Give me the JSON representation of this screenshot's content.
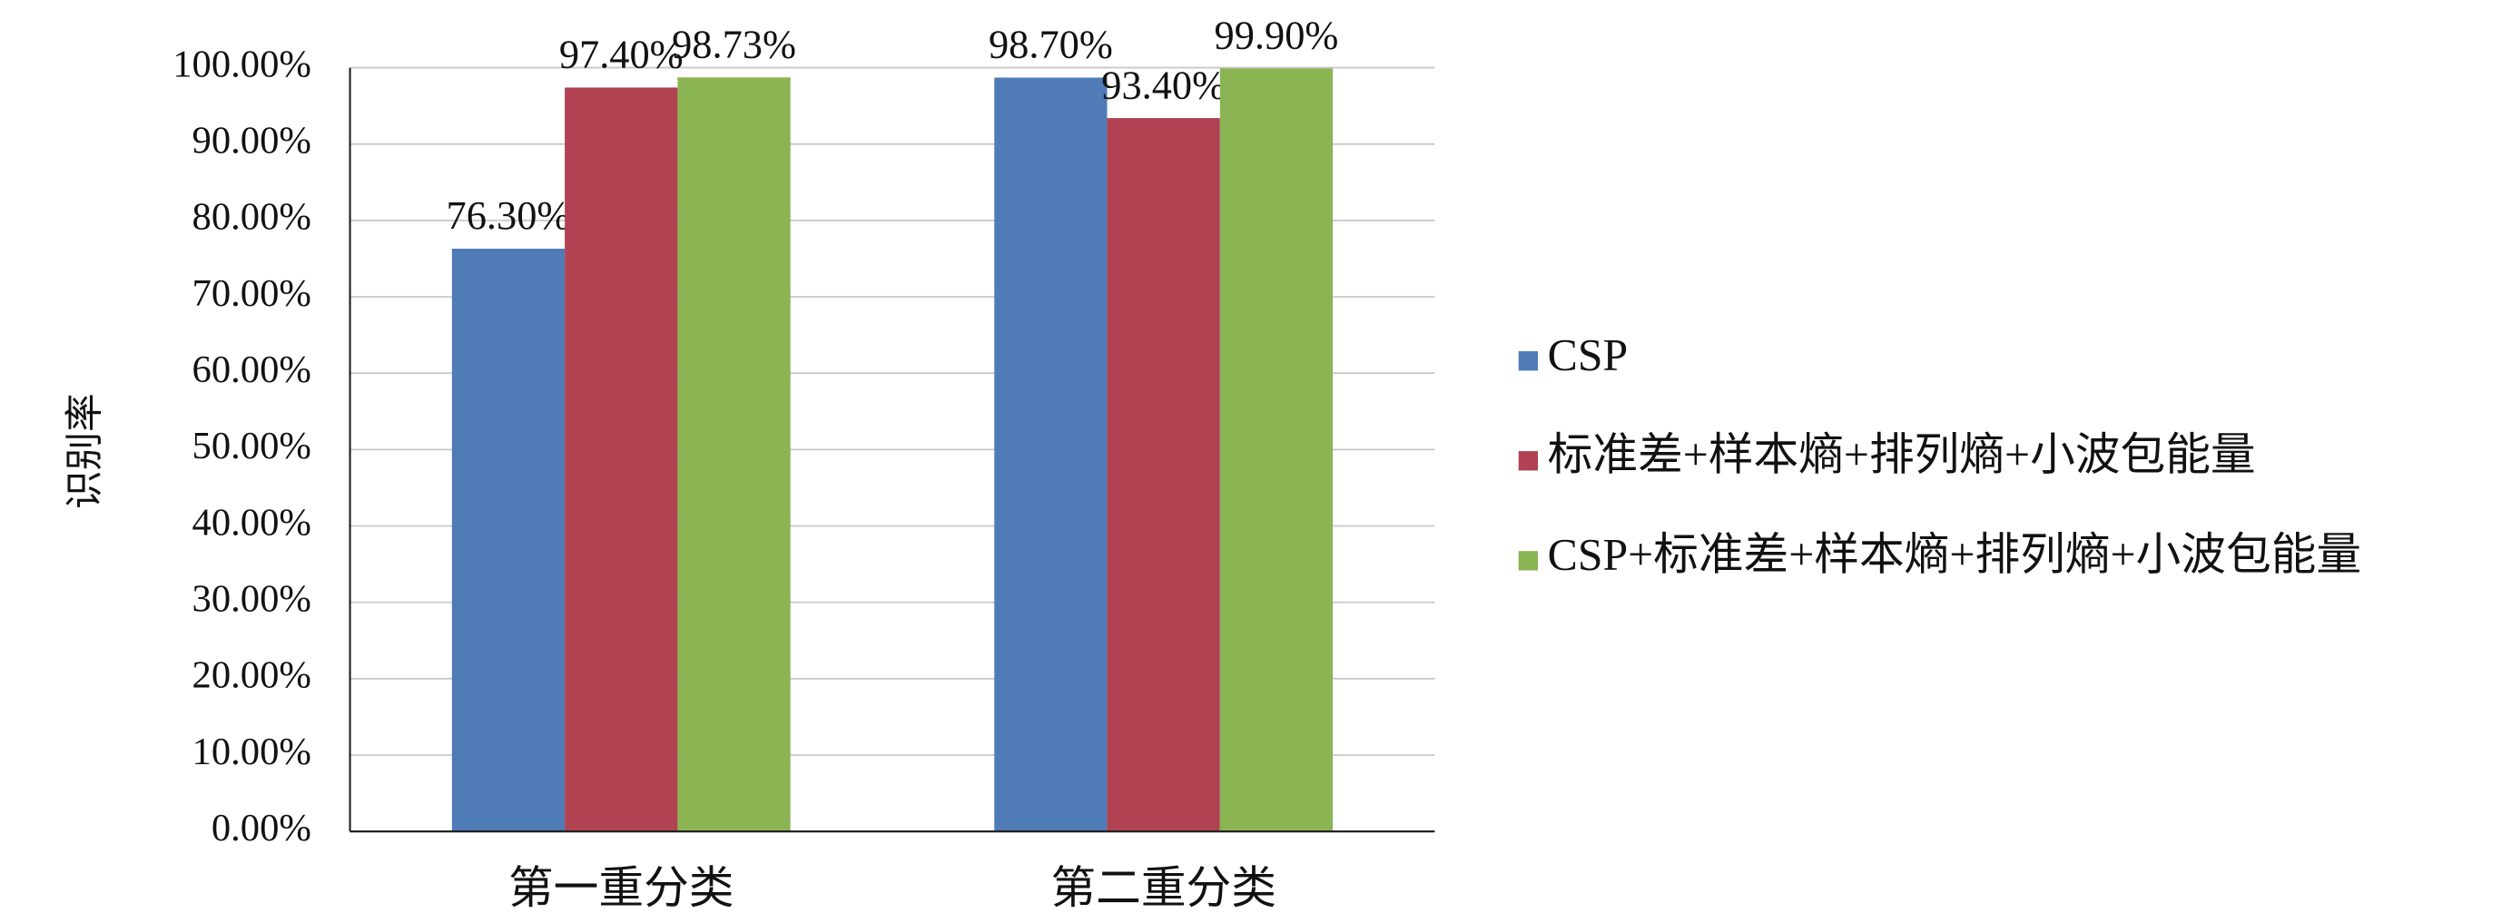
{
  "chart_data": {
    "type": "bar",
    "y_label": "识别率",
    "categories": [
      "第一重分类",
      "第二重分类"
    ],
    "series": [
      {
        "name": "CSP",
        "color": "#4f7bb7",
        "values": [
          76.3,
          98.7
        ],
        "value_labels": [
          "76.30%",
          "98.70%"
        ]
      },
      {
        "name": "标准差+样本熵+排列熵+小波包能量",
        "color": "#b04252",
        "values": [
          97.4,
          93.4
        ],
        "value_labels": [
          "97.40%",
          "93.40%"
        ]
      },
      {
        "name": "CSP+标准差+样本熵+排列熵+小波包能量",
        "color": "#8bb453",
        "values": [
          98.73,
          99.9
        ],
        "value_labels": [
          "98.73%",
          "99.90%"
        ]
      }
    ],
    "ylim": [
      0,
      100
    ],
    "yticks": [
      {
        "value": 0,
        "label": "0.00%"
      },
      {
        "value": 10,
        "label": "10.00%"
      },
      {
        "value": 20,
        "label": "20.00%"
      },
      {
        "value": 30,
        "label": "30.00%"
      },
      {
        "value": 40,
        "label": "40.00%"
      },
      {
        "value": 50,
        "label": "50.00%"
      },
      {
        "value": 60,
        "label": "60.00%"
      },
      {
        "value": 70,
        "label": "70.00%"
      },
      {
        "value": 80,
        "label": "80.00%"
      },
      {
        "value": 90,
        "label": "90.00%"
      },
      {
        "value": 100,
        "label": "100.00%"
      }
    ],
    "grid": true,
    "legend": "right"
  }
}
